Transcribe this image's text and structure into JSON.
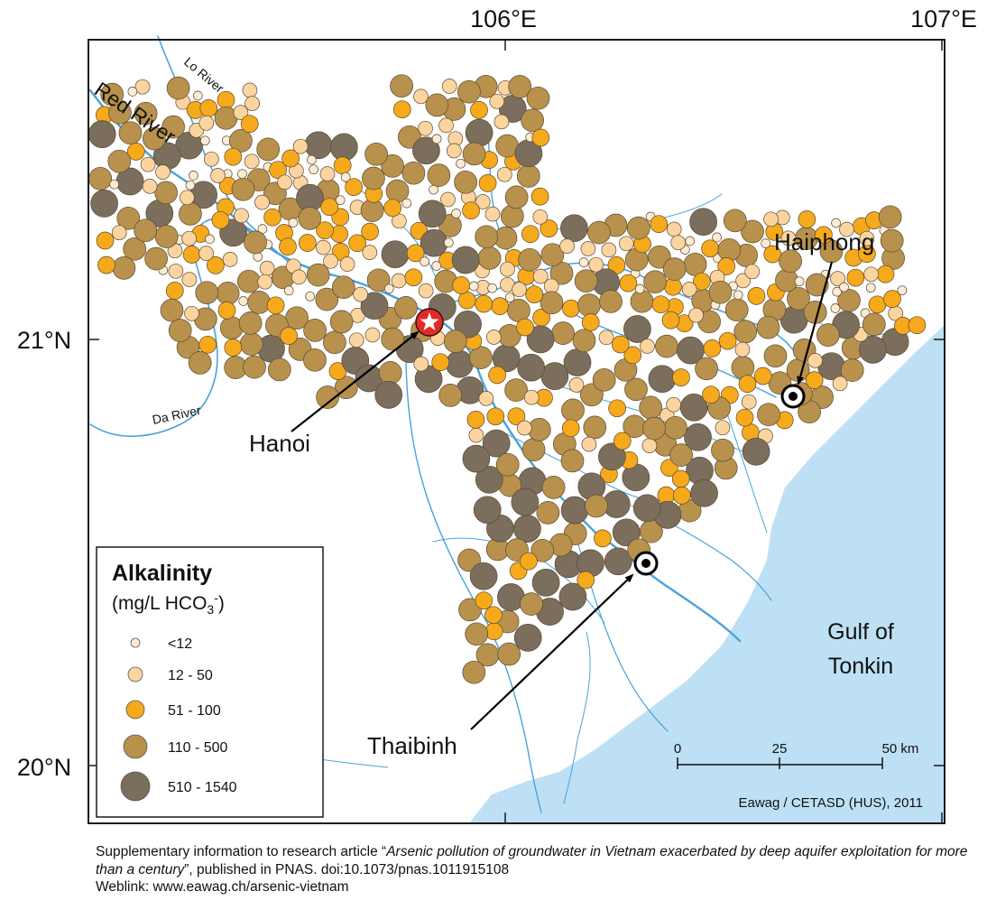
{
  "map": {
    "lon_labels": [
      "106°E",
      "107°E"
    ],
    "lat_labels": [
      "21°N",
      "20°N"
    ],
    "rivers": [
      "Red River",
      "Lo River",
      "Da River"
    ],
    "cities": [
      "Hanoi",
      "Haiphong",
      "Thaibinh"
    ],
    "sea_label_line1": "Gulf of",
    "sea_label_line2": "Tonkin",
    "credit": "Eawag / CETASD (HUS), 2011",
    "scale_bar": {
      "labels": [
        "0",
        "25",
        "50 km"
      ]
    },
    "colors": {
      "sea": "#bde0f5",
      "river": "#4aa3d8",
      "frame": "#1a1a1a"
    }
  },
  "legend": {
    "title": "Alkalinity",
    "unit_prefix": "(mg/L HCO",
    "unit_sub": "3",
    "unit_sup": "-",
    "unit_suffix": ")",
    "classes": [
      {
        "label": "<12",
        "color": "#fdebd6"
      },
      {
        "label": "12 - 50",
        "color": "#fbd4a0"
      },
      {
        "label": "51 - 100",
        "color": "#f6a91b"
      },
      {
        "label": "110 - 500",
        "color": "#b8914d"
      },
      {
        "label": "510 - 1540",
        "color": "#7b6e5d"
      }
    ]
  },
  "caption": {
    "pre": "Supplementary information to research article “",
    "title": "Arsenic pollution of groundwater in Vietnam exacerbated by deep aquifer exploitation for more than a century",
    "post": "”, published in PNAS. doi:10.1073/pnas.1011915108",
    "weblink": "Weblink: www.eawag.ch/arsenic-vietnam"
  }
}
